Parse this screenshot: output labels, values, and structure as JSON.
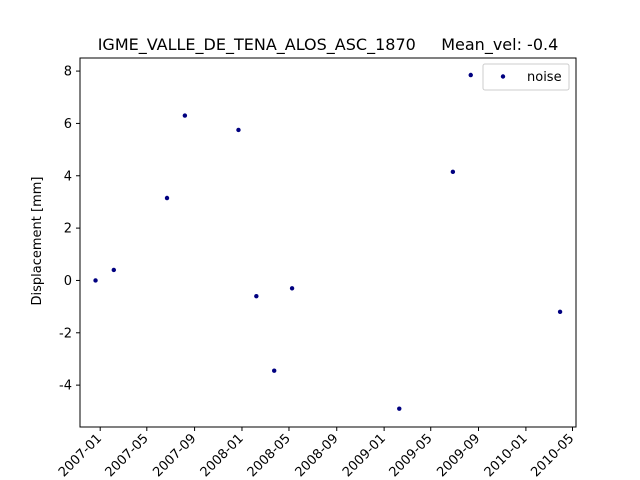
{
  "chart_data": {
    "type": "scatter",
    "title": "IGME_VALLE_DE_TENA_ALOS_ASC_1870     Mean_vel: -0.4",
    "xlabel": "",
    "ylabel": "Displacement [mm]",
    "xlim": [
      "2006-11-10",
      "2010-05-10"
    ],
    "ylim": [
      -5.6,
      8.5
    ],
    "x_ticks": [
      "2007-01",
      "2007-05",
      "2007-09",
      "2008-01",
      "2008-05",
      "2008-09",
      "2009-01",
      "2009-05",
      "2009-09",
      "2010-01",
      "2010-05"
    ],
    "y_ticks": [
      -4,
      -2,
      0,
      2,
      4,
      6,
      8
    ],
    "series": [
      {
        "name": "noise",
        "color": "#000080",
        "points": [
          {
            "x": "2006-12-20",
            "y": 0.0
          },
          {
            "x": "2007-02-05",
            "y": 0.4
          },
          {
            "x": "2007-06-22",
            "y": 3.15
          },
          {
            "x": "2007-08-07",
            "y": 6.3
          },
          {
            "x": "2007-12-23",
            "y": 5.75
          },
          {
            "x": "2008-02-07",
            "y": -0.6
          },
          {
            "x": "2008-03-24",
            "y": -3.45
          },
          {
            "x": "2008-05-09",
            "y": -0.3
          },
          {
            "x": "2009-02-09",
            "y": -4.9
          },
          {
            "x": "2009-06-27",
            "y": 4.15
          },
          {
            "x": "2009-08-12",
            "y": 7.85
          },
          {
            "x": "2010-03-30",
            "y": -1.2
          }
        ]
      }
    ],
    "legend": {
      "position": "top-right",
      "entries": [
        "noise"
      ]
    },
    "grid": false
  }
}
